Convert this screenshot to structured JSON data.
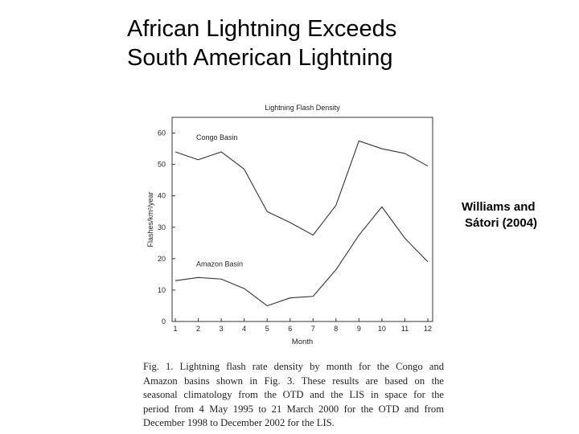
{
  "slide": {
    "title_lines": [
      "African Lightning Exceeds",
      "South American Lightning"
    ],
    "citation_lines": [
      "Williams and",
      "Sátori (2004)"
    ]
  },
  "figure": {
    "caption_lines": [
      "Fig. 1. Lightning flash rate density by month for the Congo and",
      "Amazon basins shown in Fig. 3. These results are based on the",
      "seasonal climatology from the OTD and the LIS in space for the",
      "period from 4 May 1995 to 21 March 2000 for the OTD and from",
      "December 1998 to December 2002 for the LIS."
    ]
  },
  "colors": {
    "line": "#333333",
    "text": "#000000",
    "background": "#ffffff"
  },
  "chart_data": {
    "type": "line",
    "title": "Lightning Flash Density",
    "xlabel": "Month",
    "ylabel": "Flashes/km²/year",
    "categories": [
      "1",
      "2",
      "3",
      "4",
      "5",
      "6",
      "7",
      "8",
      "9",
      "10",
      "11",
      "12"
    ],
    "y_ticks": [
      "0",
      "10",
      "20",
      "30",
      "40",
      "50",
      "60"
    ],
    "ylim": [
      0,
      65
    ],
    "grid": false,
    "series": [
      {
        "name": "Congo Basin",
        "values": [
          54,
          51.5,
          54,
          48.5,
          35,
          31.5,
          27.5,
          37,
          57.5,
          55,
          53.5,
          49.5
        ]
      },
      {
        "name": "Amazon Basin",
        "values": [
          13,
          14,
          13.5,
          10.5,
          5,
          7.5,
          8,
          16.5,
          27.5,
          36.5,
          26.5,
          19
        ]
      }
    ]
  }
}
